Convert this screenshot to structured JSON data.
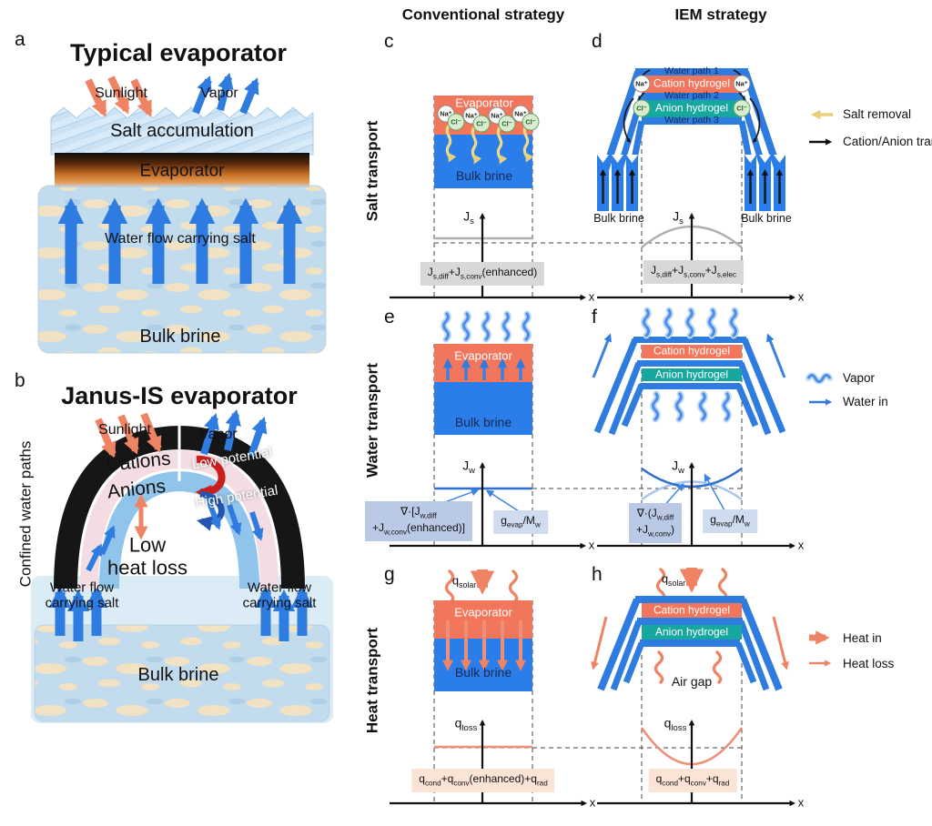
{
  "colors": {
    "evaporator_red": "#f2765b",
    "water_blue": "#2f7ce0",
    "brine_blue": "#2b7de9",
    "anion_teal": "#16a89e",
    "salmon": "#ef8465",
    "salt_yellow": "#e8cf7a",
    "gray_box": "#d8d8d8",
    "divergence_box": "#b9c9e6",
    "evap_source_box": "#cfdcf0",
    "heat_box": "#fbe4d6"
  },
  "headers": {
    "conventional": "Conventional strategy",
    "iem": "IEM strategy"
  },
  "row_labels": {
    "salt": "Salt transport",
    "water": "Water transport",
    "heat": "Heat transport"
  },
  "legend": {
    "salt_removal": "Salt removal",
    "ion_transfer": "Cation/Anion transfer",
    "vapor": "Vapor",
    "water_in": "Water in",
    "heat_in": "Heat in",
    "heat_loss": "Heat loss"
  },
  "panel_a": {
    "label": "a",
    "title": "Typical evaporator",
    "sunlight": "Sunlight",
    "vapor": "Vapor",
    "salt_accumulation": "Salt accumulation",
    "evaporator": "Evaporator",
    "water_flow": "Water flow carrying salt",
    "bulk_brine": "Bulk brine"
  },
  "panel_b": {
    "label": "b",
    "title": "Janus-IS evaporator",
    "side_label": "Confined water paths",
    "sunlight": "Sunlight",
    "vapor": "Vapor",
    "cations": "Cations",
    "anions": "Anions",
    "low_potential": "Low potential",
    "high_potential": "High potential",
    "heat_loss_line1": "Low",
    "heat_loss_line2": "heat loss",
    "water_flow_line1": "Water flow",
    "water_flow_line2": "carrying salt",
    "bulk_brine": "Bulk brine"
  },
  "panel_c": {
    "label": "c",
    "evaporator": "Evaporator",
    "bulk_brine": "Bulk brine",
    "na": "Na⁺",
    "cl": "Cl⁻",
    "y_axis_html": "J<sub>s</sub>",
    "x_axis": "x",
    "formula_html": "J<sub>s,diff</sub>+J<sub>s,conv</sub>(enhanced)"
  },
  "panel_d": {
    "label": "d",
    "water_path_1": "Water path 1",
    "cation_hydrogel": "Cation hydrogel",
    "water_path_2": "Water path 2",
    "anion_hydrogel": "Anion hydrogel",
    "water_path_3": "Water path 3",
    "na": "Na⁺",
    "cl": "Cl⁻",
    "bulk_brine": "Bulk brine",
    "y_axis_html": "J<sub>s</sub>",
    "x_axis": "x",
    "formula_html": "J<sub>s,diff</sub>+J<sub>s,conv</sub>+J<sub>s,elec</sub>"
  },
  "panel_e": {
    "label": "e",
    "evaporator": "Evaporator",
    "bulk_brine": "Bulk brine",
    "y_axis_html": "J<sub>w</sub>",
    "x_axis": "x",
    "divergence_html": "∇·[J<sub>w,diff</sub><br>+J<sub>w,conv</sub>(enhanced)]",
    "evap_source_html": "g<sub>evap</sub>/M<sub>w</sub>"
  },
  "panel_f": {
    "label": "f",
    "cation_hydrogel": "Cation hydrogel",
    "anion_hydrogel": "Anion hydrogel",
    "y_axis_html": "J<sub>w</sub>",
    "x_axis": "x",
    "divergence_html": "∇·(J<sub>w,diff</sub><br>+J<sub>w,conv</sub>)",
    "evap_source_html": "g<sub>evap</sub>/M<sub>w</sub>"
  },
  "panel_g": {
    "label": "g",
    "q_solar_html": "q<sub>solar</sub>",
    "evaporator": "Evaporator",
    "bulk_brine": "Bulk brine",
    "y_axis_html": "q<sub>loss</sub>",
    "x_axis": "x",
    "formula_html": "q<sub>cond</sub>+q<sub>conv</sub>(enhanced)+q<sub>rad</sub>"
  },
  "panel_h": {
    "label": "h",
    "q_solar_html": "q<sub>solar</sub>",
    "cation_hydrogel": "Cation hydrogel",
    "anion_hydrogel": "Anion hydrogel",
    "air_gap": "Air gap",
    "y_axis_html": "q<sub>loss</sub>",
    "x_axis": "x",
    "formula_html": "q<sub>cond</sub>+q<sub>conv</sub>+q<sub>rad</sub>"
  }
}
